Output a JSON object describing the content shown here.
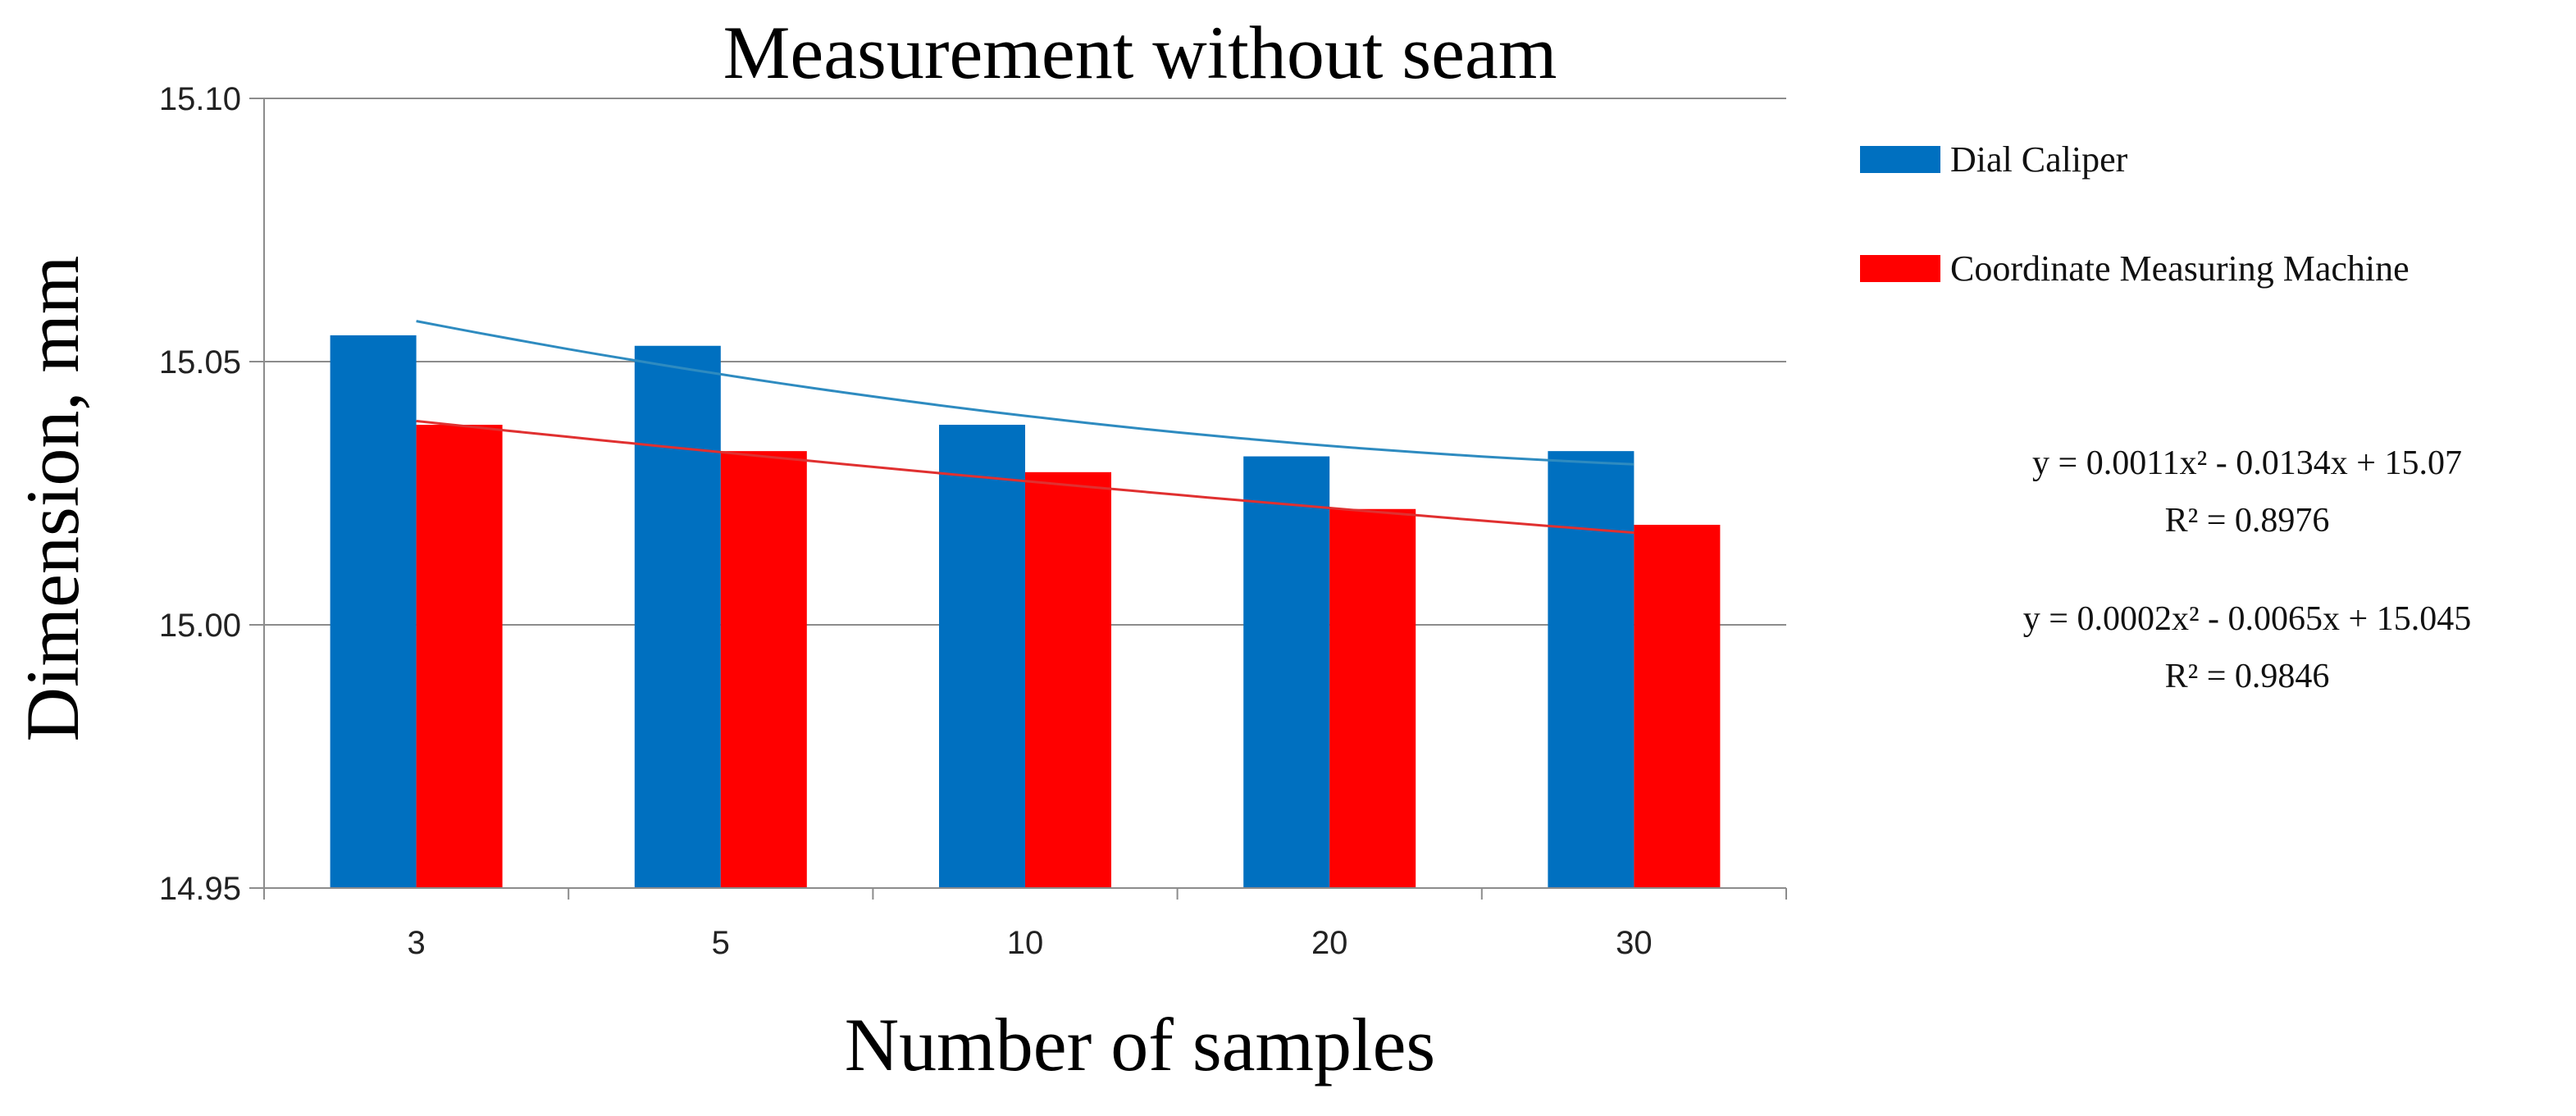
{
  "chart_data": {
    "type": "bar",
    "title": "Measurement without seam",
    "xlabel": "Number of samples",
    "ylabel": "Dimension, mm",
    "categories": [
      "3",
      "5",
      "10",
      "20",
      "30"
    ],
    "y_ticks": [
      "14.95",
      "15.00",
      "15.05",
      "15.10"
    ],
    "ylim": [
      14.95,
      15.1
    ],
    "grid": true,
    "legend_position": "right",
    "series": [
      {
        "name": "Dial Caliper",
        "color": "#0070C0",
        "values": [
          15.055,
          15.053,
          15.038,
          15.032,
          15.033
        ],
        "trendline": {
          "type": "polynomial-2",
          "a": 0.0011,
          "b": -0.0134,
          "c": 15.07,
          "color": "#2E8BC0"
        }
      },
      {
        "name": "Coordinate Measuring Machine",
        "color": "#FF0000",
        "values": [
          15.038,
          15.033,
          15.029,
          15.022,
          15.019
        ],
        "trendline": {
          "type": "polynomial-2",
          "a": 0.0002,
          "b": -0.0065,
          "c": 15.045,
          "color": "#E03030"
        }
      }
    ],
    "annotations": [
      {
        "equation": "y = 0.0011x² - 0.0134x + 15.07",
        "r2": "R² = 0.8976"
      },
      {
        "equation": "y = 0.0002x² - 0.0065x + 15.045",
        "r2": "R² = 0.9846"
      }
    ]
  }
}
